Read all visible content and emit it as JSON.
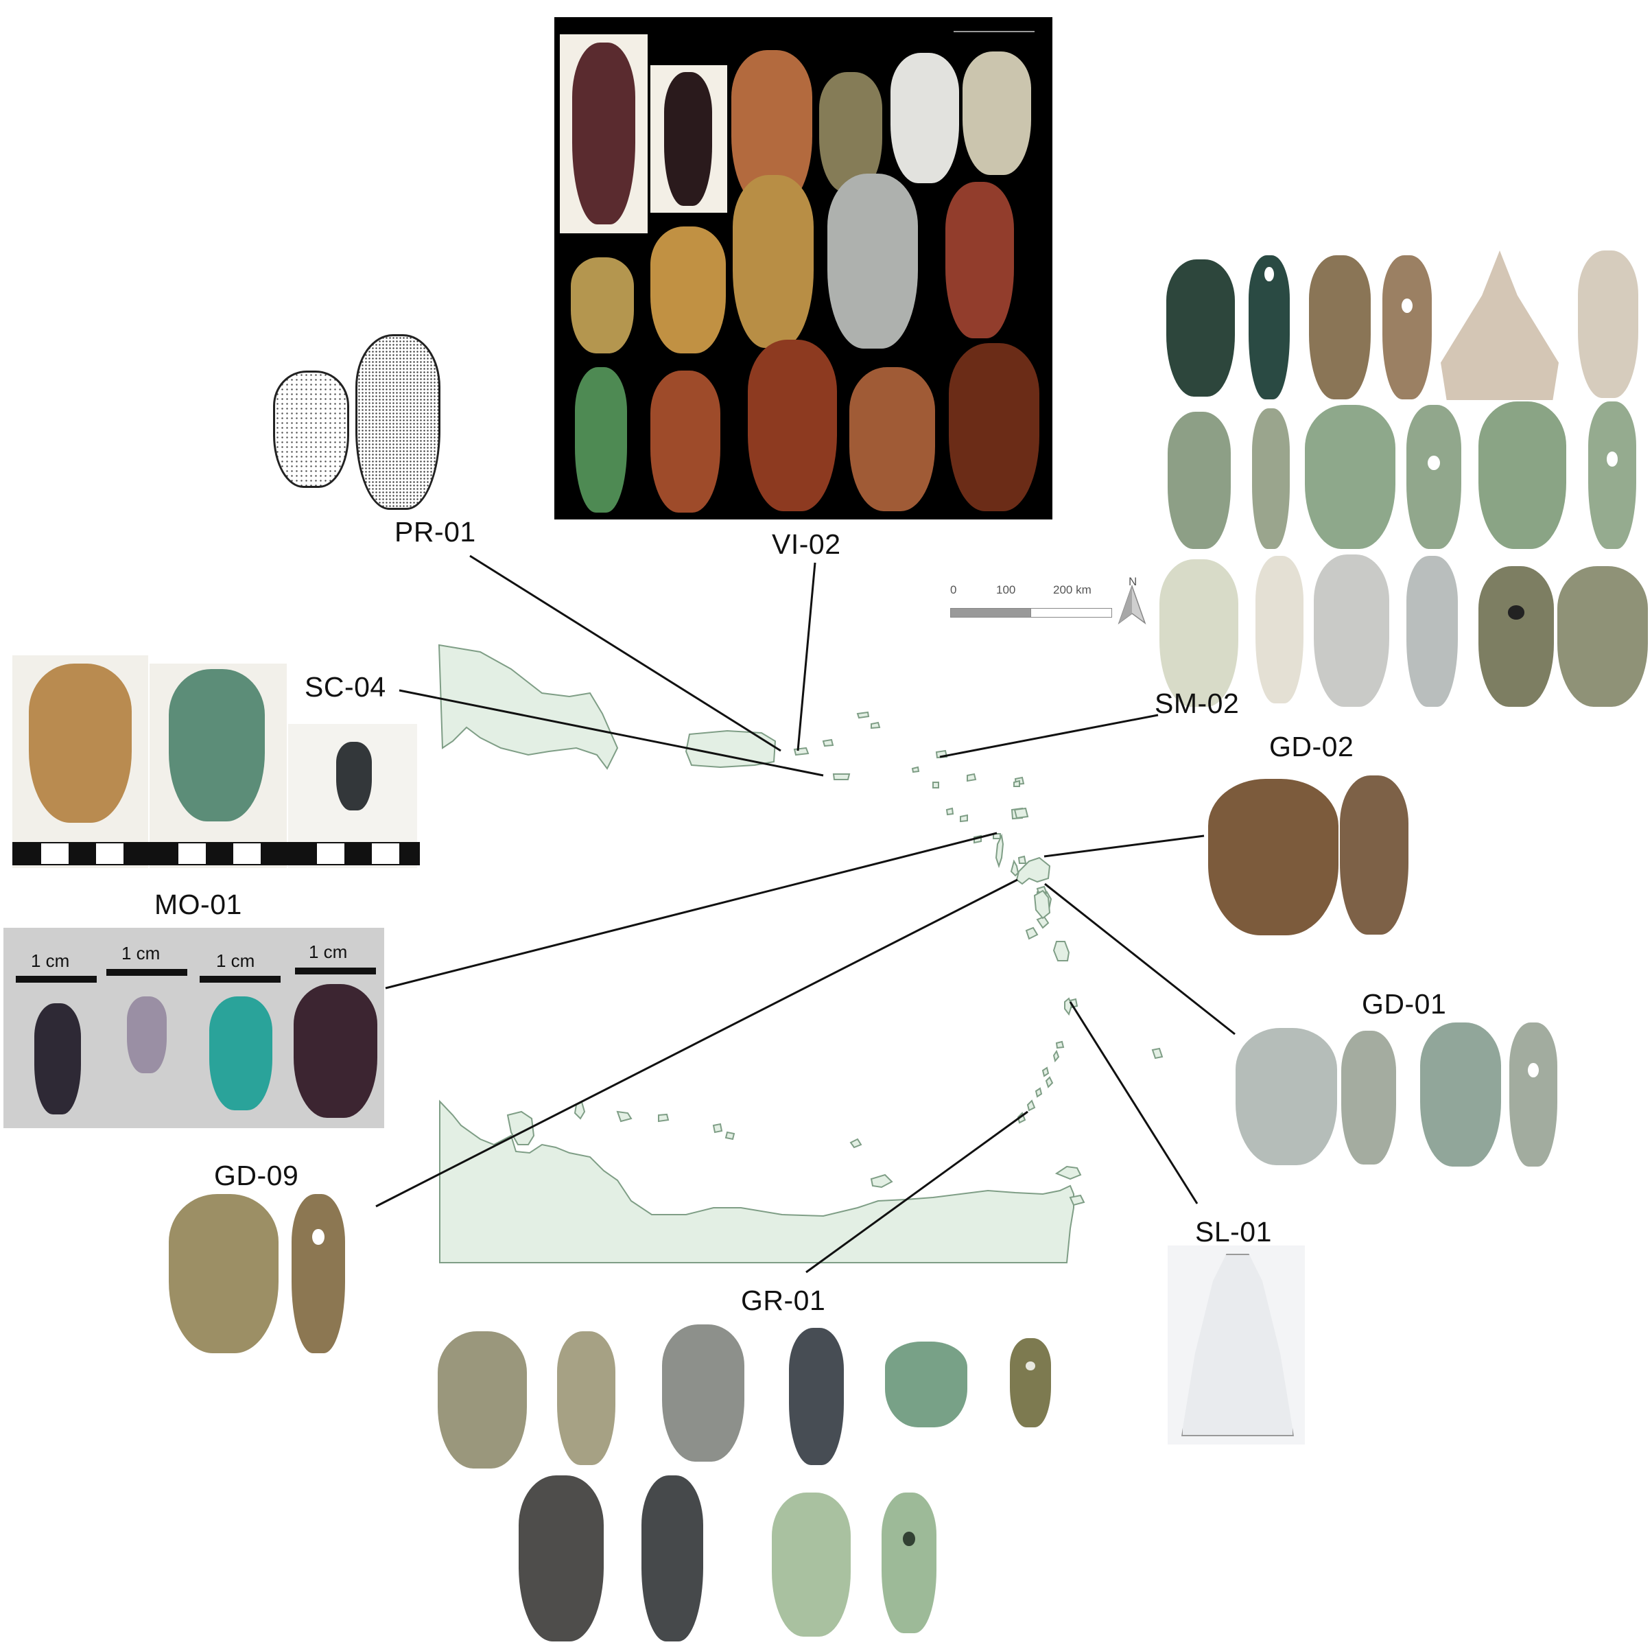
{
  "labels": {
    "pr01": "PR-01",
    "vi02": "VI-02",
    "sc04": "SC-04",
    "sm02": "SM-02",
    "gd02": "GD-02",
    "mo01": "MO-01",
    "gd01": "GD-01",
    "gd09": "GD-09",
    "sl01": "SL-01",
    "gr01": "GR-01"
  },
  "mo01_scales": [
    "1 cm",
    "1 cm",
    "1 cm",
    "1 cm"
  ],
  "map_scale": {
    "ticks": [
      "0",
      "100",
      "200 km"
    ],
    "north": "N"
  },
  "colors": {
    "land": "#e3efe4",
    "land_outline": "#7f9e86",
    "leader_line": "#111111",
    "vi02_background": "#000000",
    "mo01_background": "#cfcfcf"
  }
}
